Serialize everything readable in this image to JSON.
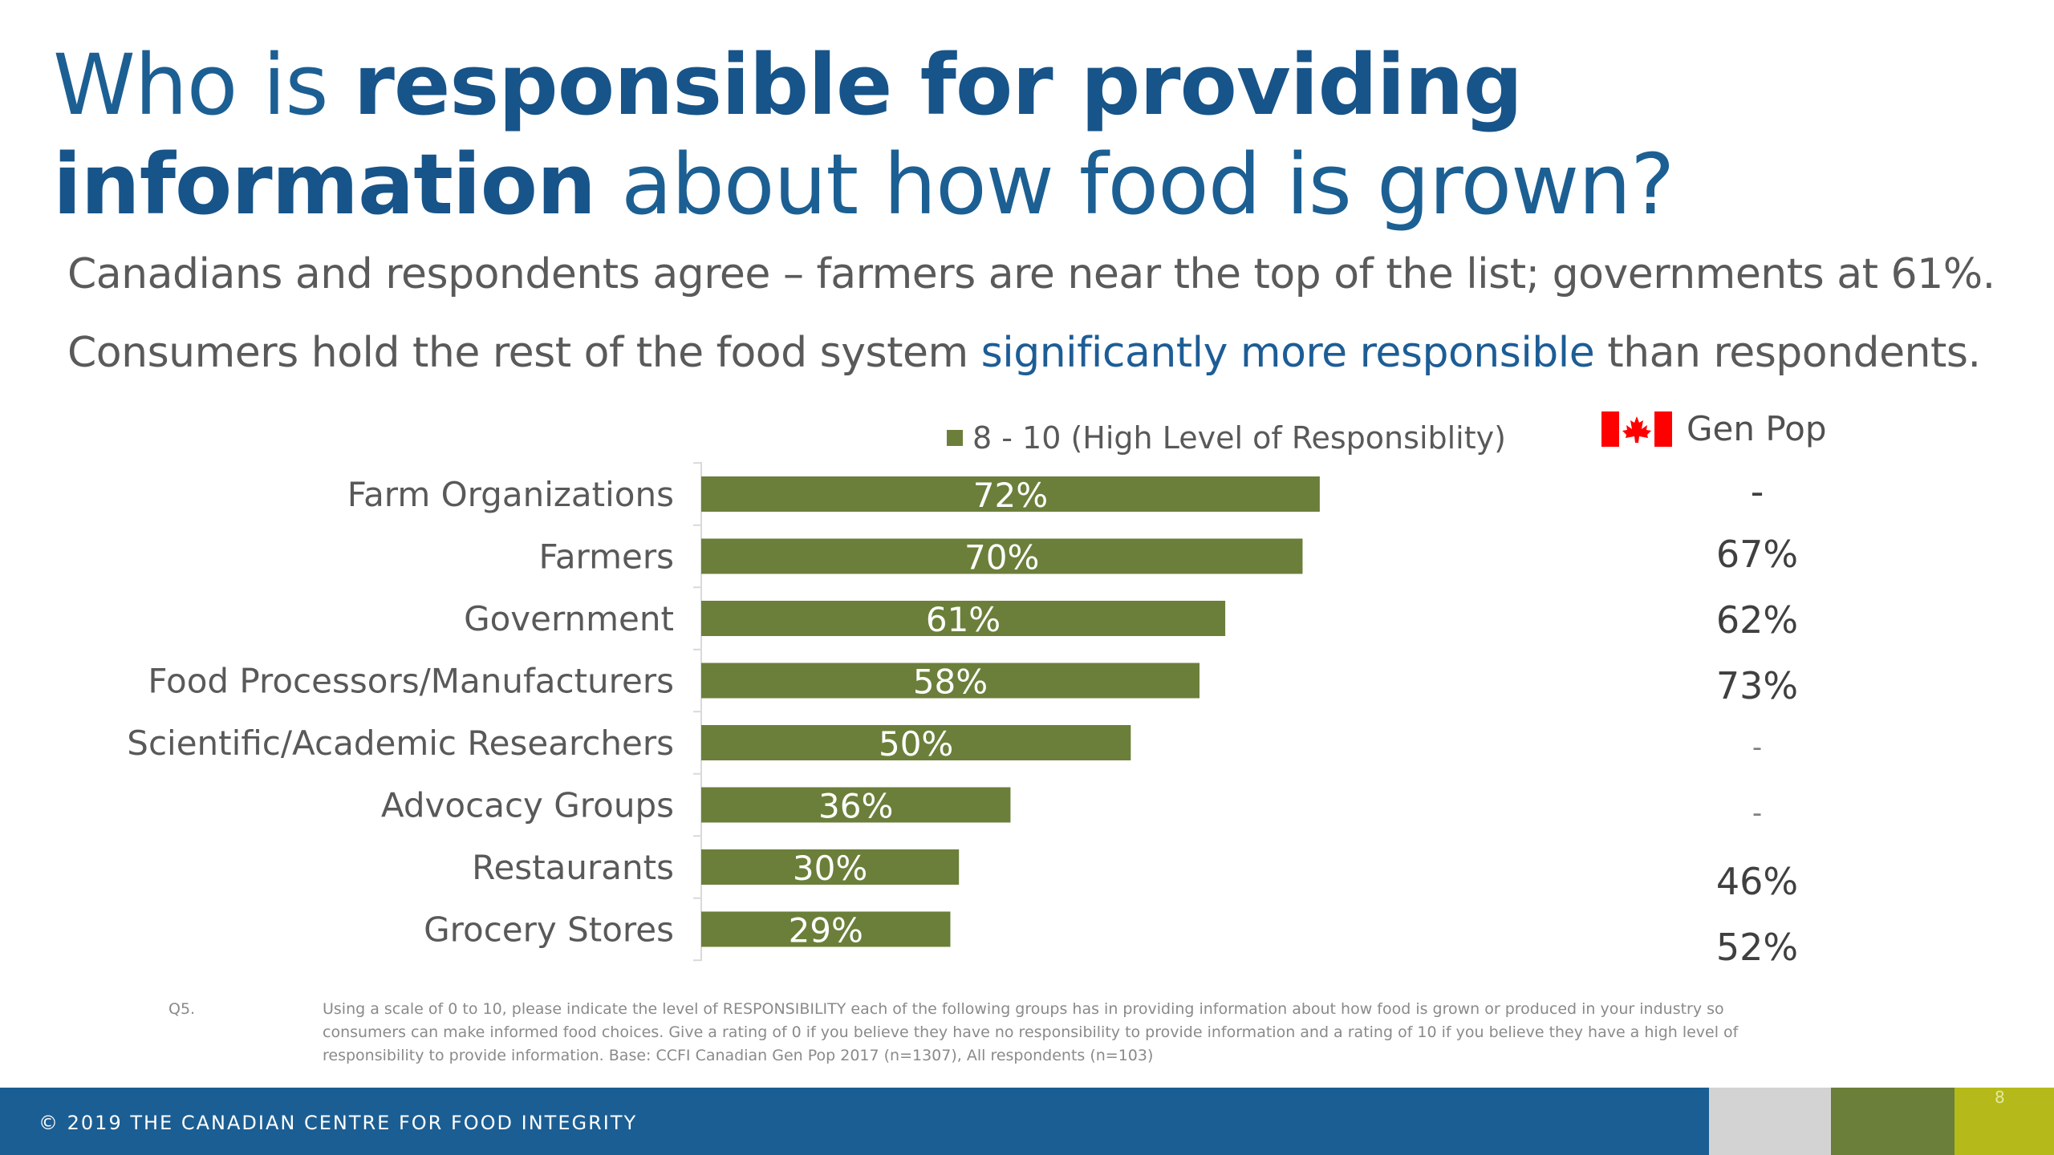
{
  "slide": {
    "title_pre": "Who is ",
    "title_bold": "responsible for providing information",
    "title_post": " about how food is grown?",
    "subtitle1": "Canadians and respondents agree – farmers are near the top of the list;  governments at 61%.",
    "subtitle2_pre": "Consumers hold the rest of the food system ",
    "subtitle2_accent": "significantly more responsible",
    "subtitle2_post": " than respondents.",
    "legend_label": "8 - 10 (High Level of Responsiblity)",
    "genpop_label": "Gen Pop",
    "note_q": "Q5.",
    "note_text": "Using a scale of 0 to 10, please indicate the level of RESPONSIBILITY each of the following groups has in providing information about how food is grown or produced in your industry so consumers can make informed food choices.  Give a rating of 0 if you believe they have no responsibility to provide information and a rating of 10 if you believe they have a high level of responsibility to provide information.  Base: CCFI Canadian Gen Pop 2017 (n=1307), All respondents (n=103)",
    "footer": "© 2019 THE CANADIAN CENTRE FOR FOOD INTEGRITY",
    "page_number": "8"
  },
  "colors": {
    "bar": "#6b7f3a",
    "title": "#1c5f93",
    "accent": "#1d5d96",
    "footer": "#1b5e93",
    "flag_red": "#ff0000"
  },
  "chart_data": {
    "type": "bar",
    "orientation": "horizontal",
    "categories": [
      "Farm Organizations",
      "Farmers",
      "Government",
      "Food Processors/Manufacturers",
      "Scientific/Academic Researchers",
      "Advocacy Groups",
      "Restaurants",
      "Grocery Stores"
    ],
    "series": [
      {
        "name": "8 - 10 (High Level of Responsiblity)",
        "values": [
          72,
          70,
          61,
          58,
          50,
          36,
          30,
          29
        ],
        "labels": [
          "72%",
          "70%",
          "61%",
          "58%",
          "50%",
          "36%",
          "30%",
          "29%"
        ]
      }
    ],
    "xlim": [
      0,
      100
    ],
    "grid": false,
    "legend": "top",
    "genpop_values": [
      "-",
      "67%",
      "62%",
      "73%",
      "-",
      "-",
      "46%",
      "52%"
    ]
  }
}
